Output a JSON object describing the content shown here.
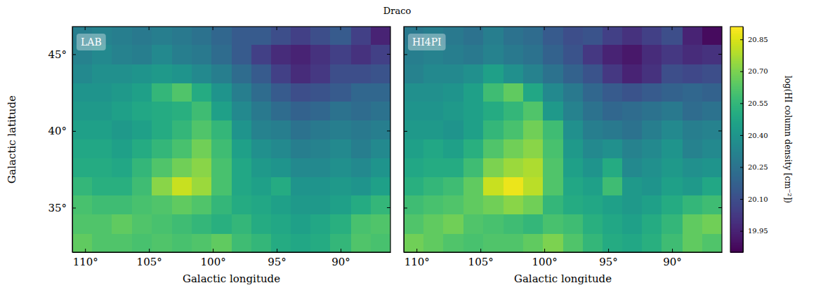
{
  "chart_data": {
    "type": "heatmap",
    "title": "Draco",
    "x_label": "Galactic longitude",
    "y_label": "Galactic latitude",
    "xlim": [
      111,
      86.1
    ],
    "ylim": [
      32.1,
      46.8
    ],
    "xticks": [
      {
        "value": 110,
        "label": "110°"
      },
      {
        "value": 105,
        "label": "105°"
      },
      {
        "value": 100,
        "label": "100°"
      },
      {
        "value": 95,
        "label": "95°"
      },
      {
        "value": 90,
        "label": "90°"
      }
    ],
    "yticks": [
      {
        "value": 35,
        "label": "35°"
      },
      {
        "value": 40,
        "label": "40°"
      },
      {
        "value": 45,
        "label": "45°"
      }
    ],
    "x": [
      110.2,
      108.7,
      107.1,
      105.6,
      104.0,
      102.4,
      100.9,
      99.3,
      97.8,
      96.2,
      94.7,
      93.1,
      91.6,
      90.0,
      88.4,
      86.9
    ],
    "y": [
      46.2,
      45.0,
      43.7,
      42.5,
      41.3,
      40.1,
      38.8,
      37.6,
      36.4,
      35.2,
      33.9,
      32.7
    ],
    "color_label": "log(HI column density [cm⁻²])",
    "color_range": [
      19.85,
      20.91
    ],
    "color_ticks": [
      19.95,
      {
        "value": 20.1,
        "label": "20.10"
      },
      20.25,
      {
        "value": 20.4,
        "label": "20.40"
      },
      20.55,
      {
        "value": 20.7,
        "label": "20.70"
      },
      20.85
    ],
    "panels": [
      {
        "name": "LAB",
        "cells": [
          [
            20.3,
            20.32,
            20.3,
            20.28,
            20.3,
            20.28,
            20.25,
            20.2,
            20.15,
            20.15,
            20.1,
            20.05,
            20.1,
            20.15,
            20.05,
            19.95
          ],
          [
            20.32,
            20.35,
            20.32,
            20.3,
            20.35,
            20.3,
            20.28,
            20.22,
            20.15,
            20.05,
            19.98,
            19.95,
            20.0,
            20.05,
            20.0,
            20.05
          ],
          [
            20.35,
            20.38,
            20.38,
            20.4,
            20.42,
            20.4,
            20.35,
            20.3,
            20.22,
            20.15,
            20.05,
            19.98,
            20.02,
            20.1,
            20.1,
            20.12
          ],
          [
            20.4,
            20.4,
            20.42,
            20.45,
            20.55,
            20.62,
            20.5,
            20.4,
            20.3,
            20.22,
            20.15,
            20.1,
            20.12,
            20.15,
            20.2,
            20.2
          ],
          [
            20.42,
            20.42,
            20.45,
            20.48,
            20.5,
            20.52,
            20.58,
            20.45,
            20.35,
            20.28,
            20.22,
            20.18,
            20.2,
            20.25,
            20.22,
            20.25
          ],
          [
            20.45,
            20.45,
            20.42,
            20.45,
            20.5,
            20.55,
            20.62,
            20.55,
            20.4,
            20.32,
            20.3,
            20.25,
            20.28,
            20.3,
            20.28,
            20.3
          ],
          [
            20.48,
            20.48,
            20.45,
            20.5,
            20.55,
            20.6,
            20.68,
            20.58,
            20.45,
            20.38,
            20.35,
            20.3,
            20.32,
            20.35,
            20.3,
            20.35
          ],
          [
            20.5,
            20.5,
            20.48,
            20.55,
            20.62,
            20.68,
            20.72,
            20.6,
            20.48,
            20.42,
            20.4,
            20.35,
            20.35,
            20.38,
            20.35,
            20.4
          ],
          [
            20.55,
            20.52,
            20.52,
            20.58,
            20.72,
            20.82,
            20.75,
            20.6,
            20.48,
            20.45,
            20.5,
            20.4,
            20.4,
            20.42,
            20.4,
            20.45
          ],
          [
            20.6,
            20.58,
            20.58,
            20.6,
            20.62,
            20.65,
            20.62,
            20.55,
            20.5,
            20.48,
            20.45,
            20.42,
            20.42,
            20.45,
            20.5,
            20.55
          ],
          [
            20.62,
            20.62,
            20.65,
            20.62,
            20.6,
            20.58,
            20.55,
            20.52,
            20.55,
            20.5,
            20.48,
            20.45,
            20.48,
            20.52,
            20.6,
            20.62
          ],
          [
            20.65,
            20.62,
            20.62,
            20.6,
            20.62,
            20.6,
            20.62,
            20.65,
            20.58,
            20.55,
            20.5,
            20.48,
            20.5,
            20.55,
            20.62,
            20.6
          ]
        ]
      },
      {
        "name": "HI4PI",
        "cells": [
          [
            20.28,
            20.3,
            20.28,
            20.25,
            20.3,
            20.25,
            20.22,
            20.15,
            20.1,
            20.12,
            20.05,
            20.0,
            20.05,
            20.1,
            19.95,
            19.88
          ],
          [
            20.3,
            20.32,
            20.3,
            20.28,
            20.32,
            20.28,
            20.25,
            20.18,
            20.12,
            20.02,
            19.95,
            19.92,
            19.98,
            20.02,
            19.98,
            20.0
          ],
          [
            20.32,
            20.35,
            20.35,
            20.38,
            20.45,
            20.38,
            20.32,
            20.25,
            20.18,
            20.12,
            20.02,
            19.95,
            20.0,
            20.1,
            20.08,
            20.1
          ],
          [
            20.38,
            20.38,
            20.4,
            20.45,
            20.58,
            20.65,
            20.48,
            20.35,
            20.28,
            20.2,
            20.15,
            20.12,
            20.15,
            20.18,
            20.2,
            20.18
          ],
          [
            20.4,
            20.4,
            20.42,
            20.45,
            20.5,
            20.55,
            20.62,
            20.42,
            20.32,
            20.25,
            20.2,
            20.22,
            20.25,
            20.28,
            20.22,
            20.25
          ],
          [
            20.42,
            20.42,
            20.4,
            20.45,
            20.55,
            20.6,
            20.68,
            20.58,
            20.38,
            20.3,
            20.28,
            20.25,
            20.3,
            20.35,
            20.3,
            20.32
          ],
          [
            20.45,
            20.48,
            20.45,
            20.52,
            20.62,
            20.68,
            20.72,
            20.6,
            20.42,
            20.35,
            20.38,
            20.32,
            20.35,
            20.4,
            20.32,
            20.35
          ],
          [
            20.48,
            20.5,
            20.5,
            20.58,
            20.7,
            20.75,
            20.78,
            20.62,
            20.45,
            20.4,
            20.5,
            20.35,
            20.38,
            20.42,
            20.38,
            20.4
          ],
          [
            20.52,
            20.55,
            20.58,
            20.65,
            20.82,
            20.88,
            20.8,
            20.62,
            20.48,
            20.45,
            20.58,
            20.42,
            20.4,
            20.45,
            20.42,
            20.48
          ],
          [
            20.58,
            20.6,
            20.62,
            20.65,
            20.68,
            20.72,
            20.68,
            20.55,
            20.5,
            20.48,
            20.45,
            20.42,
            20.45,
            20.5,
            20.55,
            20.58
          ],
          [
            20.62,
            20.65,
            20.68,
            20.62,
            20.6,
            20.58,
            20.55,
            20.6,
            20.58,
            20.52,
            20.48,
            20.45,
            20.5,
            20.55,
            20.65,
            20.68
          ],
          [
            20.68,
            20.65,
            20.62,
            20.6,
            20.62,
            20.62,
            20.65,
            20.7,
            20.62,
            20.55,
            20.5,
            20.48,
            20.52,
            20.58,
            20.65,
            20.62
          ]
        ]
      }
    ]
  }
}
